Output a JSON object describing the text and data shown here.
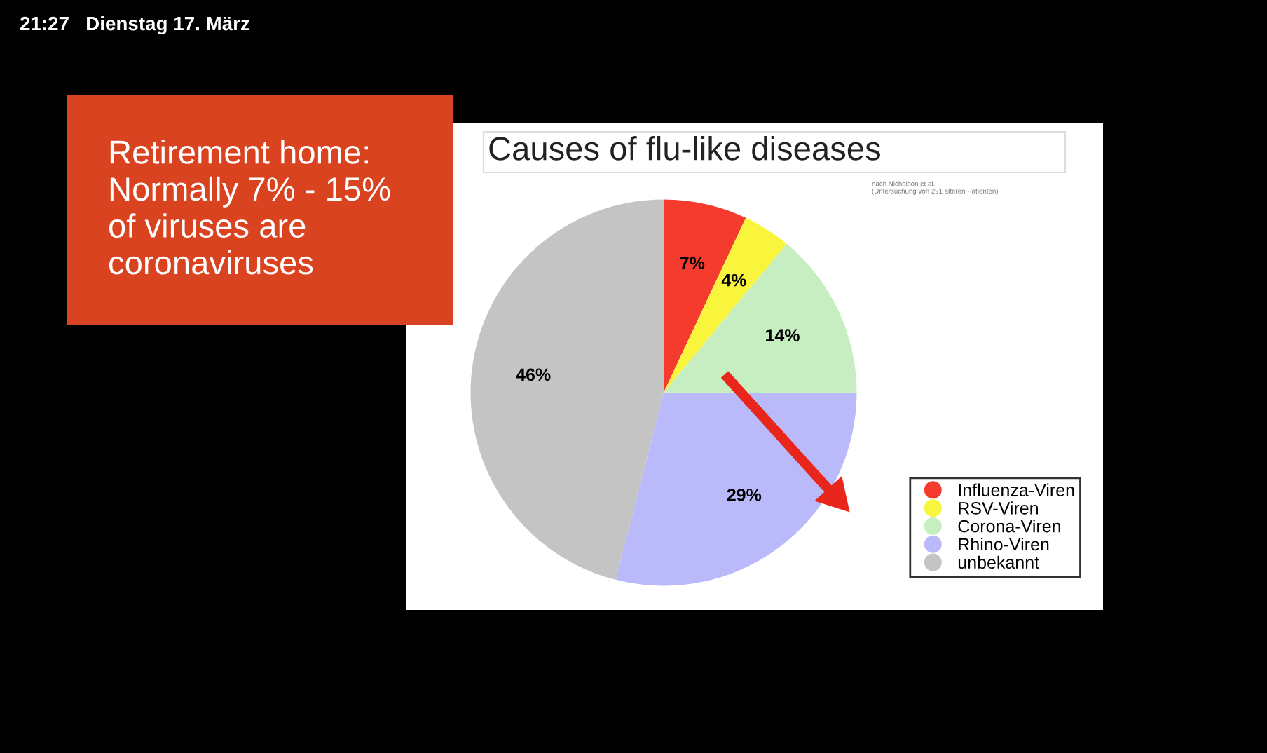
{
  "chart_data": {
    "type": "pie",
    "title": "Causes of flu-like diseases",
    "categories": [
      "Influenza-Viren",
      "RSV-Viren",
      "Corona-Viren",
      "Rhino-Viren",
      "unbekannt"
    ],
    "values": [
      7,
      4,
      14,
      29,
      46
    ],
    "colors": [
      "#f53a2e",
      "#f8f53c",
      "#c6eec0",
      "#babafb",
      "#c4c4c4"
    ],
    "value_labels": [
      "7%",
      "4%",
      "14%",
      "29%",
      "46%"
    ],
    "legend": "bottom right",
    "annotations": [
      "21:27   Dienstag 17. März",
      "Retirement home:\nNormally 7% - 15%\nof viruses are\ncoronaviruses",
      "nach Nicholson et al.\n(Untersuchung von 291 älteren Patienten)"
    ]
  }
}
